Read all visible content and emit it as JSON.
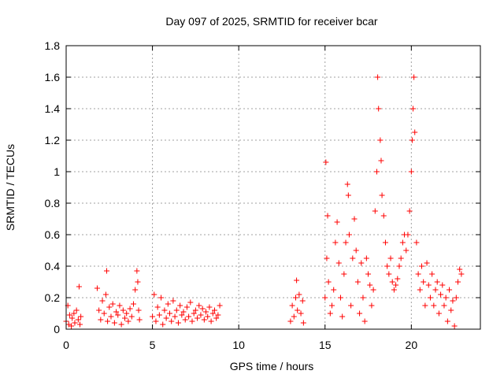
{
  "chart_data": {
    "type": "scatter",
    "title": "Day 097 of 2025, SRMTID for receiver bcar",
    "xlabel": "GPS time / hours",
    "ylabel": "SRMTID / TECUs",
    "xlim": [
      0,
      24
    ],
    "ylim": [
      0,
      1.8
    ],
    "xticks": [
      0,
      5,
      10,
      15,
      20
    ],
    "yticks": [
      0,
      0.2,
      0.4,
      0.6,
      0.8,
      1,
      1.2,
      1.4,
      1.6,
      1.8
    ],
    "xtick_labels": [
      "0",
      "5",
      "10",
      "15",
      "20"
    ],
    "ytick_labels": [
      "0",
      "0.2",
      "0.4",
      "0.6",
      "0.8",
      "1",
      "1.2",
      "1.4",
      "1.6",
      "1.8"
    ],
    "grid": true,
    "marker": "+",
    "color": "#ff0000",
    "series": [
      {
        "name": "SRMTID",
        "points": [
          [
            0.0,
            0.05
          ],
          [
            0.1,
            0.15
          ],
          [
            0.15,
            0.03
          ],
          [
            0.2,
            0.09
          ],
          [
            0.3,
            0.02
          ],
          [
            0.35,
            0.07
          ],
          [
            0.45,
            0.1
          ],
          [
            0.5,
            0.04
          ],
          [
            0.6,
            0.12
          ],
          [
            0.7,
            0.06
          ],
          [
            0.75,
            0.27
          ],
          [
            0.8,
            0.03
          ],
          [
            0.85,
            0.08
          ],
          [
            1.8,
            0.26
          ],
          [
            1.9,
            0.12
          ],
          [
            2.0,
            0.06
          ],
          [
            2.1,
            0.18
          ],
          [
            2.2,
            0.1
          ],
          [
            2.3,
            0.22
          ],
          [
            2.35,
            0.37
          ],
          [
            2.4,
            0.05
          ],
          [
            2.5,
            0.14
          ],
          [
            2.6,
            0.08
          ],
          [
            2.7,
            0.16
          ],
          [
            2.8,
            0.04
          ],
          [
            2.9,
            0.11
          ],
          [
            3.0,
            0.09
          ],
          [
            3.1,
            0.15
          ],
          [
            3.2,
            0.03
          ],
          [
            3.3,
            0.12
          ],
          [
            3.4,
            0.07
          ],
          [
            3.5,
            0.1
          ],
          [
            3.6,
            0.05
          ],
          [
            3.7,
            0.13
          ],
          [
            3.8,
            0.08
          ],
          [
            3.9,
            0.16
          ],
          [
            4.0,
            0.25
          ],
          [
            4.1,
            0.37
          ],
          [
            4.15,
            0.3
          ],
          [
            4.2,
            0.12
          ],
          [
            4.25,
            0.06
          ],
          [
            5.0,
            0.08
          ],
          [
            5.1,
            0.22
          ],
          [
            5.2,
            0.05
          ],
          [
            5.3,
            0.14
          ],
          [
            5.4,
            0.09
          ],
          [
            5.5,
            0.2
          ],
          [
            5.6,
            0.03
          ],
          [
            5.7,
            0.12
          ],
          [
            5.8,
            0.07
          ],
          [
            5.9,
            0.16
          ],
          [
            6.0,
            0.1
          ],
          [
            6.1,
            0.05
          ],
          [
            6.2,
            0.18
          ],
          [
            6.3,
            0.08
          ],
          [
            6.4,
            0.12
          ],
          [
            6.5,
            0.04
          ],
          [
            6.6,
            0.15
          ],
          [
            6.7,
            0.09
          ],
          [
            6.8,
            0.11
          ],
          [
            6.9,
            0.06
          ],
          [
            7.0,
            0.14
          ],
          [
            7.1,
            0.08
          ],
          [
            7.2,
            0.17
          ],
          [
            7.3,
            0.05
          ],
          [
            7.4,
            0.1
          ],
          [
            7.5,
            0.12
          ],
          [
            7.6,
            0.07
          ],
          [
            7.7,
            0.15
          ],
          [
            7.8,
            0.09
          ],
          [
            7.9,
            0.13
          ],
          [
            8.0,
            0.06
          ],
          [
            8.1,
            0.11
          ],
          [
            8.2,
            0.08
          ],
          [
            8.3,
            0.14
          ],
          [
            8.4,
            0.05
          ],
          [
            8.5,
            0.1
          ],
          [
            8.6,
            0.12
          ],
          [
            8.7,
            0.07
          ],
          [
            8.8,
            0.09
          ],
          [
            8.9,
            0.15
          ],
          [
            13.0,
            0.05
          ],
          [
            13.1,
            0.15
          ],
          [
            13.2,
            0.08
          ],
          [
            13.3,
            0.2
          ],
          [
            13.35,
            0.31
          ],
          [
            13.4,
            0.12
          ],
          [
            13.5,
            0.22
          ],
          [
            13.6,
            0.1
          ],
          [
            13.7,
            0.18
          ],
          [
            13.75,
            0.04
          ],
          [
            15.0,
            0.2
          ],
          [
            15.05,
            1.06
          ],
          [
            15.1,
            0.45
          ],
          [
            15.15,
            0.72
          ],
          [
            15.2,
            0.3
          ],
          [
            15.3,
            0.1
          ],
          [
            15.4,
            0.15
          ],
          [
            15.5,
            0.25
          ],
          [
            15.6,
            0.55
          ],
          [
            15.7,
            0.68
          ],
          [
            15.8,
            0.42
          ],
          [
            15.9,
            0.2
          ],
          [
            16.0,
            0.08
          ],
          [
            16.1,
            0.35
          ],
          [
            16.2,
            0.55
          ],
          [
            16.3,
            0.92
          ],
          [
            16.35,
            0.85
          ],
          [
            16.4,
            0.6
          ],
          [
            16.5,
            0.15
          ],
          [
            16.6,
            0.45
          ],
          [
            16.7,
            0.7
          ],
          [
            16.8,
            0.5
          ],
          [
            16.9,
            0.3
          ],
          [
            17.0,
            0.1
          ],
          [
            17.1,
            0.42
          ],
          [
            17.2,
            0.2
          ],
          [
            17.3,
            0.05
          ],
          [
            17.4,
            0.45
          ],
          [
            17.5,
            0.35
          ],
          [
            17.6,
            0.28
          ],
          [
            17.7,
            0.15
          ],
          [
            17.8,
            0.25
          ],
          [
            17.9,
            0.75
          ],
          [
            18.0,
            1.0
          ],
          [
            18.05,
            1.6
          ],
          [
            18.1,
            1.4
          ],
          [
            18.2,
            1.2
          ],
          [
            18.25,
            1.07
          ],
          [
            18.3,
            0.85
          ],
          [
            18.4,
            0.72
          ],
          [
            18.5,
            0.55
          ],
          [
            18.6,
            0.4
          ],
          [
            18.7,
            0.35
          ],
          [
            18.8,
            0.45
          ],
          [
            18.9,
            0.3
          ],
          [
            19.0,
            0.25
          ],
          [
            19.1,
            0.28
          ],
          [
            19.2,
            0.32
          ],
          [
            19.3,
            0.4
          ],
          [
            19.4,
            0.45
          ],
          [
            19.5,
            0.55
          ],
          [
            19.6,
            0.6
          ],
          [
            19.7,
            0.5
          ],
          [
            19.8,
            0.6
          ],
          [
            19.9,
            0.75
          ],
          [
            20.0,
            1.0
          ],
          [
            20.05,
            1.2
          ],
          [
            20.1,
            1.4
          ],
          [
            20.15,
            1.6
          ],
          [
            20.2,
            1.25
          ],
          [
            20.3,
            0.55
          ],
          [
            20.4,
            0.35
          ],
          [
            20.5,
            0.25
          ],
          [
            20.6,
            0.4
          ],
          [
            20.7,
            0.3
          ],
          [
            20.8,
            0.15
          ],
          [
            20.9,
            0.42
          ],
          [
            21.0,
            0.28
          ],
          [
            21.1,
            0.2
          ],
          [
            21.2,
            0.35
          ],
          [
            21.3,
            0.15
          ],
          [
            21.4,
            0.25
          ],
          [
            21.5,
            0.3
          ],
          [
            21.6,
            0.1
          ],
          [
            21.7,
            0.22
          ],
          [
            21.8,
            0.28
          ],
          [
            21.9,
            0.15
          ],
          [
            22.0,
            0.2
          ],
          [
            22.1,
            0.05
          ],
          [
            22.2,
            0.25
          ],
          [
            22.3,
            0.12
          ],
          [
            22.4,
            0.18
          ],
          [
            22.5,
            0.02
          ],
          [
            22.6,
            0.2
          ],
          [
            22.7,
            0.3
          ],
          [
            22.8,
            0.38
          ],
          [
            22.9,
            0.35
          ]
        ]
      }
    ]
  }
}
